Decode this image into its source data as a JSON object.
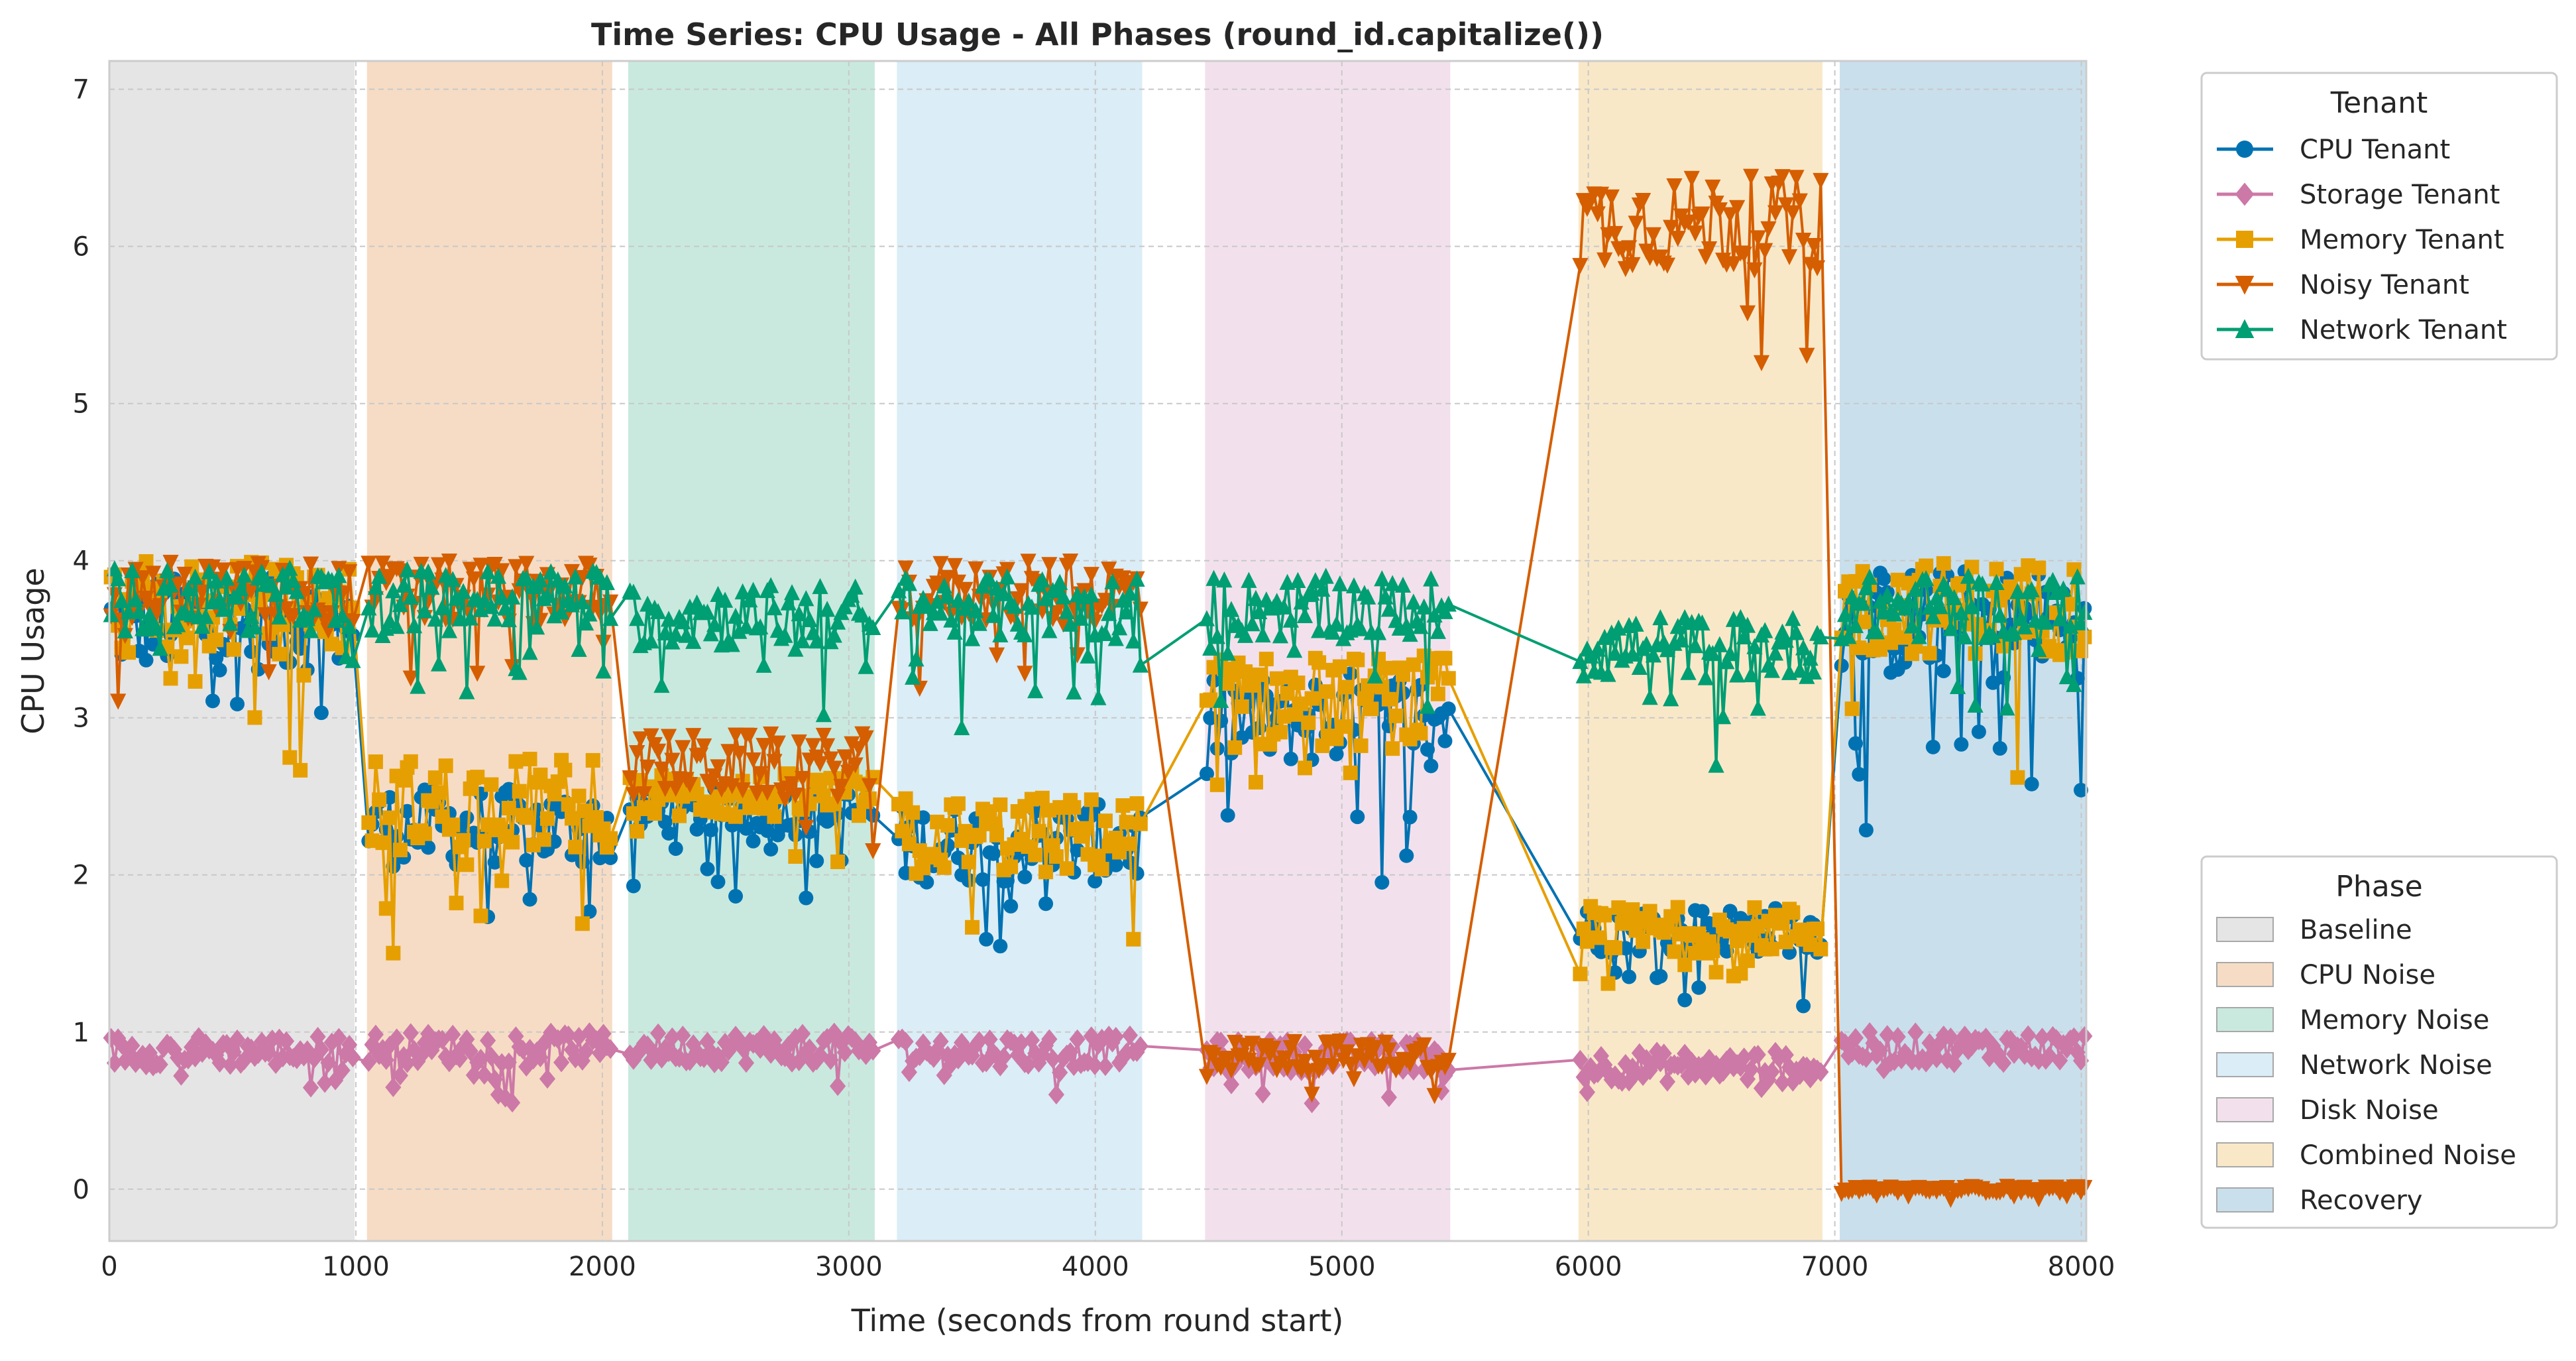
{
  "chart_data": {
    "type": "line",
    "title": "Time Series: CPU Usage - All Phases (round_id.capitalize())",
    "xlabel": "Time (seconds from round start)",
    "ylabel": "CPU Usage",
    "xlim": [
      0,
      8020
    ],
    "ylim": [
      -0.33,
      7.18
    ],
    "x_ticks": [
      "0",
      "1000",
      "2000",
      "3000",
      "4000",
      "5000",
      "6000",
      "7000",
      "8000"
    ],
    "y_ticks": [
      "0",
      "1",
      "2",
      "3",
      "4",
      "5",
      "6",
      "7"
    ],
    "grid": true,
    "tenant_legend": {
      "title": "Tenant",
      "placement": "upper right, outside plot"
    },
    "phase_legend": {
      "title": "Phase",
      "placement": "lower right, outside plot"
    },
    "phases": [
      {
        "name": "Baseline",
        "start": 0,
        "end": 995,
        "color": "#e5e5e5"
      },
      {
        "name": "CPU Noise",
        "start": 1045,
        "end": 2040,
        "color": "#f6dcc5"
      },
      {
        "name": "Memory Noise",
        "start": 2105,
        "end": 3105,
        "color": "#c9e9de"
      },
      {
        "name": "Network Noise",
        "start": 3195,
        "end": 4190,
        "color": "#dbedf6"
      },
      {
        "name": "Disk Noise",
        "start": 4445,
        "end": 5440,
        "color": "#f2e1ec"
      },
      {
        "name": "Combined Noise",
        "start": 5960,
        "end": 6950,
        "color": "#f9e8c8"
      },
      {
        "name": "Recovery",
        "start": 7020,
        "end": 8020,
        "color": "#c9dfec"
      }
    ],
    "series": [
      {
        "name": "CPU Tenant",
        "color": "#0072b2",
        "marker": "circle",
        "phase_levels": [
          [
            3.6,
            0.3
          ],
          [
            2.3,
            0.25
          ],
          [
            2.4,
            0.15
          ],
          [
            2.2,
            0.25
          ],
          [
            3.0,
            0.3
          ],
          [
            1.65,
            0.15
          ],
          [
            3.6,
            0.35
          ]
        ]
      },
      {
        "name": "Storage Tenant",
        "color": "#cc79a7",
        "marker": "diamond",
        "phase_levels": [
          [
            0.88,
            0.1
          ],
          [
            0.9,
            0.1
          ],
          [
            0.9,
            0.1
          ],
          [
            0.88,
            0.1
          ],
          [
            0.85,
            0.1
          ],
          [
            0.78,
            0.1
          ],
          [
            0.9,
            0.1
          ]
        ]
      },
      {
        "name": "Memory Tenant",
        "color": "#e69f00",
        "marker": "square",
        "phase_levels": [
          [
            3.7,
            0.3
          ],
          [
            2.45,
            0.3
          ],
          [
            2.5,
            0.15
          ],
          [
            2.25,
            0.25
          ],
          [
            3.1,
            0.3
          ],
          [
            1.65,
            0.15
          ],
          [
            3.7,
            0.3
          ]
        ]
      },
      {
        "name": "Noisy Tenant",
        "color": "#d55e00",
        "marker": "triangle-down",
        "phase_levels": [
          [
            3.8,
            0.2
          ],
          [
            3.8,
            0.2
          ],
          [
            2.7,
            0.2
          ],
          [
            3.8,
            0.2
          ],
          [
            0.85,
            0.1
          ],
          [
            6.15,
            0.3
          ],
          [
            0.0,
            0.02
          ]
        ]
      },
      {
        "name": "Network Tenant",
        "color": "#009e73",
        "marker": "triangle-up",
        "phase_levels": [
          [
            3.75,
            0.2
          ],
          [
            3.75,
            0.2
          ],
          [
            3.65,
            0.2
          ],
          [
            3.7,
            0.2
          ],
          [
            3.7,
            0.2
          ],
          [
            3.45,
            0.2
          ],
          [
            3.7,
            0.2
          ]
        ]
      }
    ]
  }
}
